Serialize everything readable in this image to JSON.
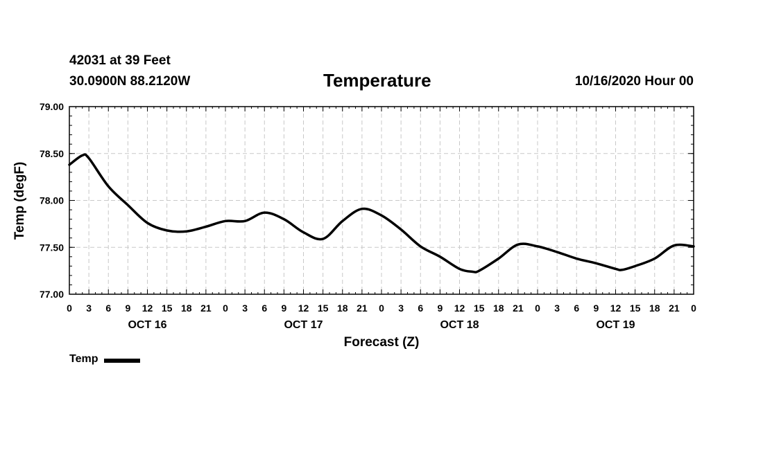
{
  "header": {
    "station": "42031 at 39 Feet",
    "coordinates": "30.0900N 88.2120W",
    "run_time": "10/16/2020 Hour 00"
  },
  "legend": {
    "label": "Temp"
  },
  "colors": {
    "line": "#000000",
    "grid": "#c8c8c8",
    "frame": "#000000",
    "background": "#ffffff"
  },
  "chart_data": {
    "type": "line",
    "title": "Temperature",
    "xlabel": "Forecast (Z)",
    "ylabel": "Temp (degF)",
    "ylim": [
      77.0,
      79.0
    ],
    "xlim": [
      0,
      96
    ],
    "y_ticks": [
      "77.00",
      "77.50",
      "78.00",
      "78.50",
      "79.00"
    ],
    "x_tick_labels": [
      "0",
      "3",
      "6",
      "9",
      "12",
      "15",
      "18",
      "21",
      "0",
      "3",
      "6",
      "9",
      "12",
      "15",
      "18",
      "21",
      "0",
      "3",
      "6",
      "9",
      "12",
      "15",
      "18",
      "21",
      "0",
      "3",
      "6",
      "9",
      "12",
      "15",
      "18",
      "21",
      "0"
    ],
    "day_labels": [
      {
        "label": "OCT 16",
        "hour": 12
      },
      {
        "label": "OCT 17",
        "hour": 36
      },
      {
        "label": "OCT 18",
        "hour": 60
      },
      {
        "label": "OCT 19",
        "hour": 84
      }
    ],
    "grid": true,
    "legend_position": "bottom-left",
    "series": [
      {
        "name": "Temp",
        "x": [
          0,
          2,
          3,
          6,
          9,
          12,
          15,
          18,
          21,
          24,
          27,
          30,
          33,
          36,
          39,
          42,
          45,
          48,
          51,
          54,
          57,
          60,
          62,
          63,
          66,
          69,
          72,
          75,
          78,
          81,
          84,
          85,
          87,
          90,
          93,
          96
        ],
        "values": [
          78.38,
          78.48,
          78.45,
          78.15,
          77.95,
          77.76,
          77.68,
          77.67,
          77.72,
          77.78,
          77.78,
          77.87,
          77.8,
          77.66,
          77.59,
          77.78,
          77.91,
          77.84,
          77.69,
          77.51,
          77.4,
          77.27,
          77.24,
          77.25,
          77.38,
          77.53,
          77.51,
          77.45,
          77.38,
          77.33,
          77.27,
          77.26,
          77.3,
          77.38,
          77.52,
          77.51
        ]
      }
    ]
  }
}
